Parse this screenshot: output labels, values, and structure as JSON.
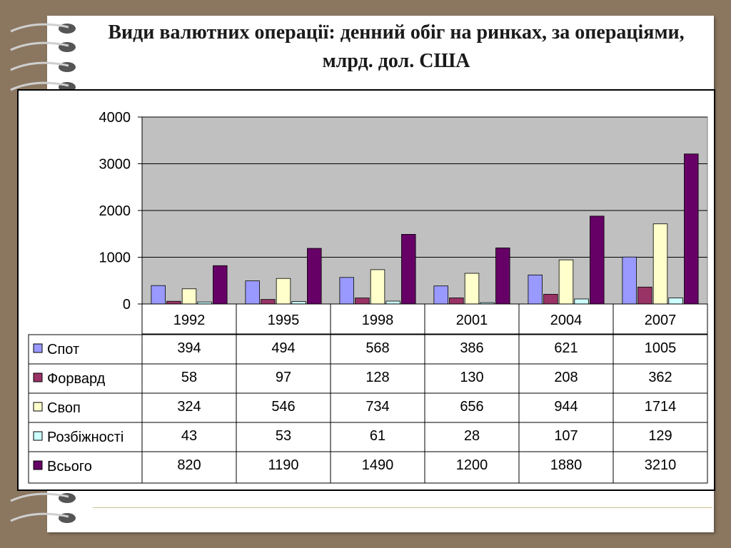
{
  "title": "Види валютних операції: денний обіг на ринках, за операціями, млрд. дол. США",
  "colors": {
    "plot_background": "#c0c0c0",
    "series": [
      "#9999ff",
      "#993366",
      "#ffffcc",
      "#ccffff",
      "#660066"
    ]
  },
  "chart_data": {
    "type": "bar",
    "title": "Види валютних операції: денний обіг на ринках, за операціями, млрд. дол. США",
    "xlabel": "",
    "ylabel": "",
    "categories": [
      "1992",
      "1995",
      "1998",
      "2001",
      "2004",
      "2007"
    ],
    "series": [
      {
        "name": "Спот",
        "values": [
          394,
          494,
          568,
          386,
          621,
          1005
        ]
      },
      {
        "name": "Форвард",
        "values": [
          58,
          97,
          128,
          130,
          208,
          362
        ]
      },
      {
        "name": "Своп",
        "values": [
          324,
          546,
          734,
          656,
          944,
          1714
        ]
      },
      {
        "name": "Розбіжності",
        "values": [
          43,
          53,
          61,
          28,
          107,
          129
        ]
      },
      {
        "name": "Всього",
        "values": [
          820,
          1190,
          1490,
          1200,
          1880,
          3210
        ]
      }
    ],
    "ylim": [
      0,
      4000
    ],
    "yticks": [
      "0",
      "1000",
      "2000",
      "3000",
      "4000"
    ],
    "grid": true,
    "legend": "data-table"
  }
}
